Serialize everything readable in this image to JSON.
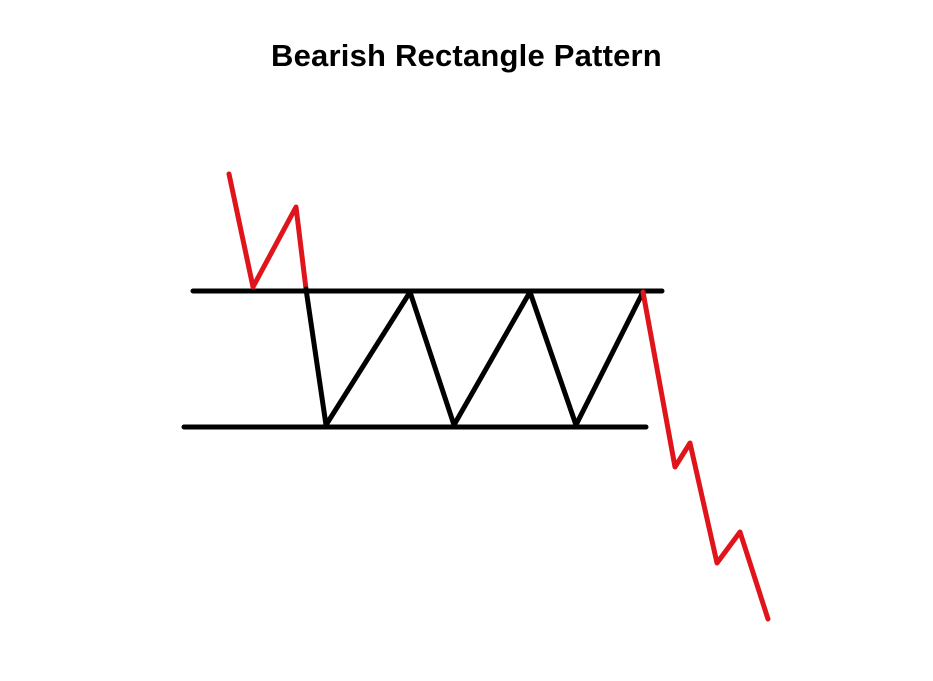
{
  "title": "Bearish Rectangle Pattern",
  "colors": {
    "background": "#ffffff",
    "range_lines": "#000000",
    "price_inside_range": "#000000",
    "price_trend": "#e0151b"
  },
  "pattern": {
    "name": "bearish-rectangle",
    "prior_trend": "downtrend",
    "breakout_direction": "down",
    "boundaries": [
      "resistance",
      "support"
    ],
    "touches": {
      "resistance": 3,
      "support": 3
    }
  }
}
